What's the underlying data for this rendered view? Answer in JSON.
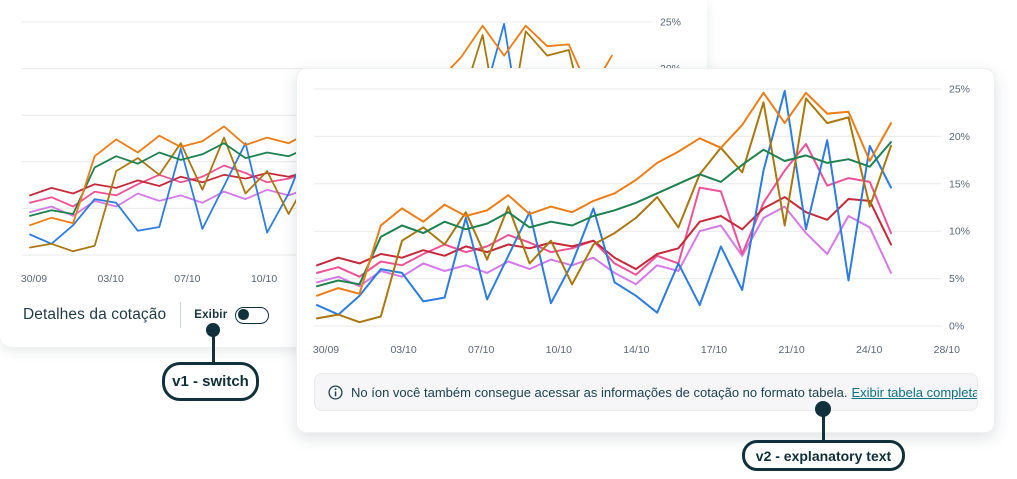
{
  "colors": {
    "accent_dark_teal": "#10313c",
    "link_teal": "#0c7280",
    "gridline": "#e9e9e9",
    "tick_text": "#5b6673",
    "panel_bg": "#ffffff",
    "info_banner_bg": "#f6f6f8",
    "info_text": "#1c424e"
  },
  "v1_panel": {
    "details_label": "Detalhes da cotação",
    "toggle_label": "Exibir",
    "toggle_state": "off"
  },
  "v2_panel": {
    "info": {
      "icon": "info-icon",
      "text": "No íon você também consegue acessar as informações de cotação no formato tabela.",
      "link_text": "Exibir tabela completa."
    }
  },
  "callouts": {
    "v1": "v1 - switch",
    "v2": "v2 - explanatory text"
  },
  "chart_data": {
    "type": "line",
    "title": "",
    "xlabel": "",
    "ylabel": "",
    "ylim": [
      0,
      25
    ],
    "grid": true,
    "legend": "none",
    "unit": "percent",
    "x_tick_labels": [
      "30/09",
      "03/10",
      "07/10",
      "10/10",
      "14/10",
      "17/10",
      "21/10",
      "24/10",
      "28/10"
    ],
    "y_tick_labels": [
      "25%",
      "20%",
      "15%",
      "10%",
      "5%",
      "0%"
    ],
    "x": [
      0,
      1,
      2,
      3,
      4,
      5,
      6,
      7,
      8,
      9,
      10,
      11,
      12,
      13,
      14,
      15,
      16,
      17,
      18,
      19,
      20,
      21,
      22,
      23,
      24,
      25,
      26,
      27
    ],
    "series": [
      {
        "name": "violet-line",
        "color": "#d47ae8",
        "values": [
          4.6,
          5.2,
          4.2,
          5.8,
          5.2,
          6.6,
          5.8,
          6.4,
          5.6,
          6.8,
          6.0,
          7.0,
          6.4,
          7.2,
          5.6,
          4.4,
          6.4,
          5.8,
          10.0,
          10.6,
          7.4,
          11.4,
          12.6,
          9.8,
          7.6,
          11.6,
          10.4,
          5.6
        ]
      },
      {
        "name": "pink-line",
        "color": "#ee5296",
        "values": [
          5.6,
          6.2,
          5.2,
          6.8,
          6.4,
          7.6,
          8.6,
          7.8,
          8.4,
          9.6,
          8.8,
          7.8,
          8.2,
          9.0,
          6.6,
          5.4,
          7.4,
          6.6,
          14.6,
          14.2,
          7.6,
          13.0,
          16.4,
          19.2,
          14.8,
          15.6,
          15.2,
          9.8
        ]
      },
      {
        "name": "red-line",
        "color": "#c42a3a",
        "values": [
          6.4,
          7.2,
          6.6,
          7.6,
          7.2,
          8.0,
          7.4,
          8.4,
          7.8,
          8.6,
          8.2,
          8.8,
          8.4,
          9.0,
          7.2,
          6.0,
          7.6,
          8.2,
          11.0,
          11.6,
          10.2,
          12.4,
          13.6,
          12.0,
          11.2,
          13.4,
          13.2,
          8.6
        ]
      },
      {
        "name": "blue-line",
        "color": "#2d7ce0",
        "values": [
          2.2,
          1.2,
          3.2,
          6.0,
          5.6,
          2.6,
          3.0,
          11.4,
          2.8,
          7.4,
          12.0,
          2.4,
          6.6,
          12.4,
          4.6,
          3.2,
          1.4,
          6.6,
          2.2,
          8.4,
          3.8,
          16.4,
          24.8,
          10.2,
          19.6,
          4.8,
          19.0,
          14.6
        ]
      },
      {
        "name": "goldenrod-line",
        "color": "#a8780e",
        "values": [
          0.8,
          1.2,
          0.4,
          1.0,
          9.0,
          10.4,
          8.6,
          12.0,
          7.0,
          12.6,
          6.6,
          9.0,
          4.4,
          8.6,
          9.8,
          11.4,
          13.6,
          10.4,
          16.0,
          18.8,
          16.2,
          23.6,
          10.6,
          24.0,
          21.4,
          22.0,
          12.6,
          19.0
        ]
      },
      {
        "name": "green-line",
        "color": "#1d8150",
        "values": [
          4.2,
          4.8,
          4.4,
          9.4,
          10.6,
          9.8,
          11.0,
          10.2,
          10.8,
          12.0,
          10.4,
          11.0,
          10.6,
          11.6,
          12.2,
          13.0,
          14.0,
          15.0,
          16.0,
          15.2,
          17.0,
          18.6,
          17.4,
          18.0,
          17.2,
          17.6,
          16.8,
          19.4
        ]
      },
      {
        "name": "orange-line",
        "color": "#ec7d15",
        "values": [
          3.2,
          4.0,
          3.4,
          10.6,
          12.4,
          11.0,
          12.8,
          11.6,
          12.2,
          13.8,
          11.8,
          12.6,
          12.0,
          13.2,
          14.0,
          15.4,
          17.2,
          18.4,
          19.8,
          18.8,
          21.2,
          24.6,
          21.4,
          24.6,
          22.4,
          22.6,
          17.4,
          21.4
        ]
      }
    ]
  }
}
